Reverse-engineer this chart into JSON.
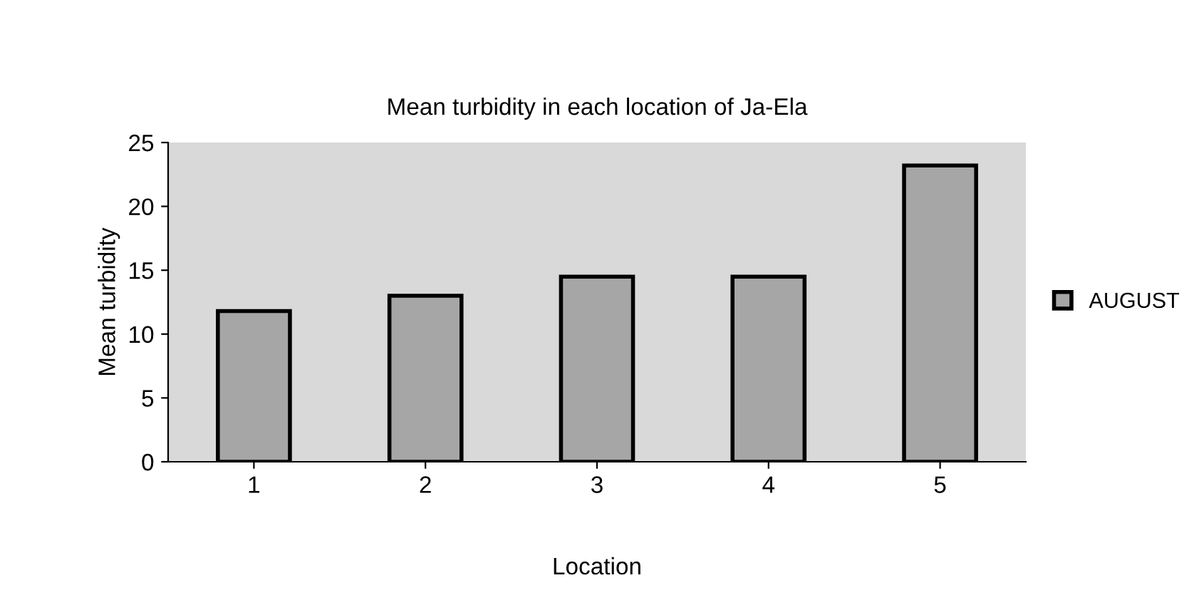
{
  "chart_data": {
    "type": "bar",
    "title": "Mean turbidity in each location of Ja-Ela",
    "xlabel": "Location",
    "ylabel": "Mean turbidity",
    "categories": [
      "1",
      "2",
      "3",
      "4",
      "5"
    ],
    "series": [
      {
        "name": "AUGUST",
        "color": "#a6a6a6",
        "values": [
          11.8,
          13.0,
          14.5,
          14.5,
          23.2
        ]
      }
    ],
    "ylim": [
      0,
      25
    ],
    "yticks": [
      0,
      5,
      10,
      15,
      20,
      25
    ],
    "grid": false,
    "legend": "right"
  }
}
